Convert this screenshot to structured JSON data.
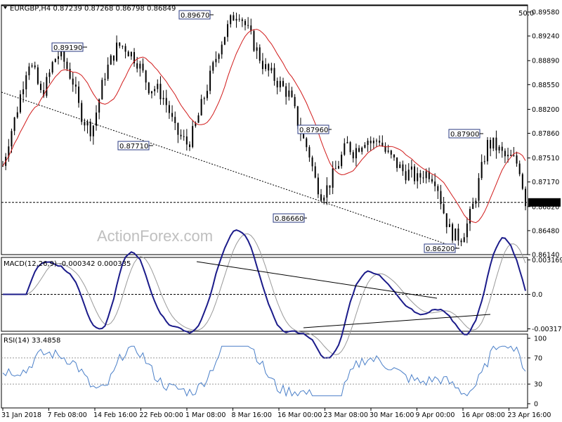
{
  "chart_data": [
    {
      "type": "candlestick",
      "header": "EURGBP,H4  0.87239 0.87268 0.86798 0.86849",
      "y_ticks": [
        "0.89580",
        "0.89240",
        "0.88890",
        "0.88550",
        "0.88200",
        "0.87860",
        "0.87510",
        "0.87170",
        "0.86820",
        "0.86480",
        "0.86140"
      ],
      "ylim": [
        0.8614,
        0.8968
      ],
      "current_price": "0.86880",
      "fib_label": "50.0",
      "fib_level": 0.8967,
      "annotations": [
        {
          "text": "0.89670",
          "value": 0.8967
        },
        {
          "text": "0.89190",
          "value": 0.8919
        },
        {
          "text": "0.87710",
          "value": 0.8771
        },
        {
          "text": "0.87960",
          "value": 0.8796
        },
        {
          "text": "0.86660",
          "value": 0.8666
        },
        {
          "text": "0.87900",
          "value": 0.879
        },
        {
          "text": "0.86200",
          "value": 0.862
        }
      ],
      "close_path": [
        0.874,
        0.878,
        0.881,
        0.885,
        0.889,
        0.887,
        0.884,
        0.886,
        0.889,
        0.89,
        0.888,
        0.886,
        0.882,
        0.88,
        0.879,
        0.883,
        0.887,
        0.889,
        0.891,
        0.891,
        0.89,
        0.889,
        0.887,
        0.885,
        0.885,
        0.884,
        0.882,
        0.879,
        0.878,
        0.877,
        0.879,
        0.882,
        0.885,
        0.888,
        0.891,
        0.893,
        0.895,
        0.896,
        0.894,
        0.892,
        0.89,
        0.888,
        0.887,
        0.886,
        0.885,
        0.884,
        0.881,
        0.878,
        0.876,
        0.872,
        0.87,
        0.871,
        0.873,
        0.875,
        0.877,
        0.876,
        0.877,
        0.878,
        0.877,
        0.878,
        0.876,
        0.875,
        0.874,
        0.873,
        0.873,
        0.872,
        0.873,
        0.873,
        0.872,
        0.868,
        0.865,
        0.864,
        0.864,
        0.866,
        0.869,
        0.873,
        0.877,
        0.877,
        0.876,
        0.875,
        0.875,
        0.874,
        0.869
      ]
    },
    {
      "type": "line",
      "label": "MACD(12,26,9) -0.000342 0.000335",
      "y_ticks": [
        "0.003169",
        "0.0",
        "-0.003177"
      ],
      "ylim": [
        -0.0034,
        0.0034
      ]
    },
    {
      "type": "line",
      "label": "RSI(14) 33.4858",
      "y_ticks": [
        "100",
        "70",
        "30",
        "0"
      ],
      "ylim": [
        0,
        100
      ],
      "levels": [
        70,
        30
      ]
    }
  ],
  "x_ticks": [
    "31 Jan 2018",
    "7 Feb 08:00",
    "14 Feb 16:00",
    "22 Feb 00:00",
    "1 Mar 08:00",
    "8 Mar 16:00",
    "16 Mar 00:00",
    "23 Mar 08:00",
    "30 Mar 16:00",
    "9 Apr 00:00",
    "16 Apr 08:00",
    "23 Apr 16:00"
  ],
  "watermark": "ActionForex.com",
  "colors": {
    "price": "#000000",
    "ma": "#d11a1a",
    "macd": "#1b1b8a",
    "signal": "#999999",
    "rsi": "#4a7fc8",
    "box": "#2a3a80"
  }
}
